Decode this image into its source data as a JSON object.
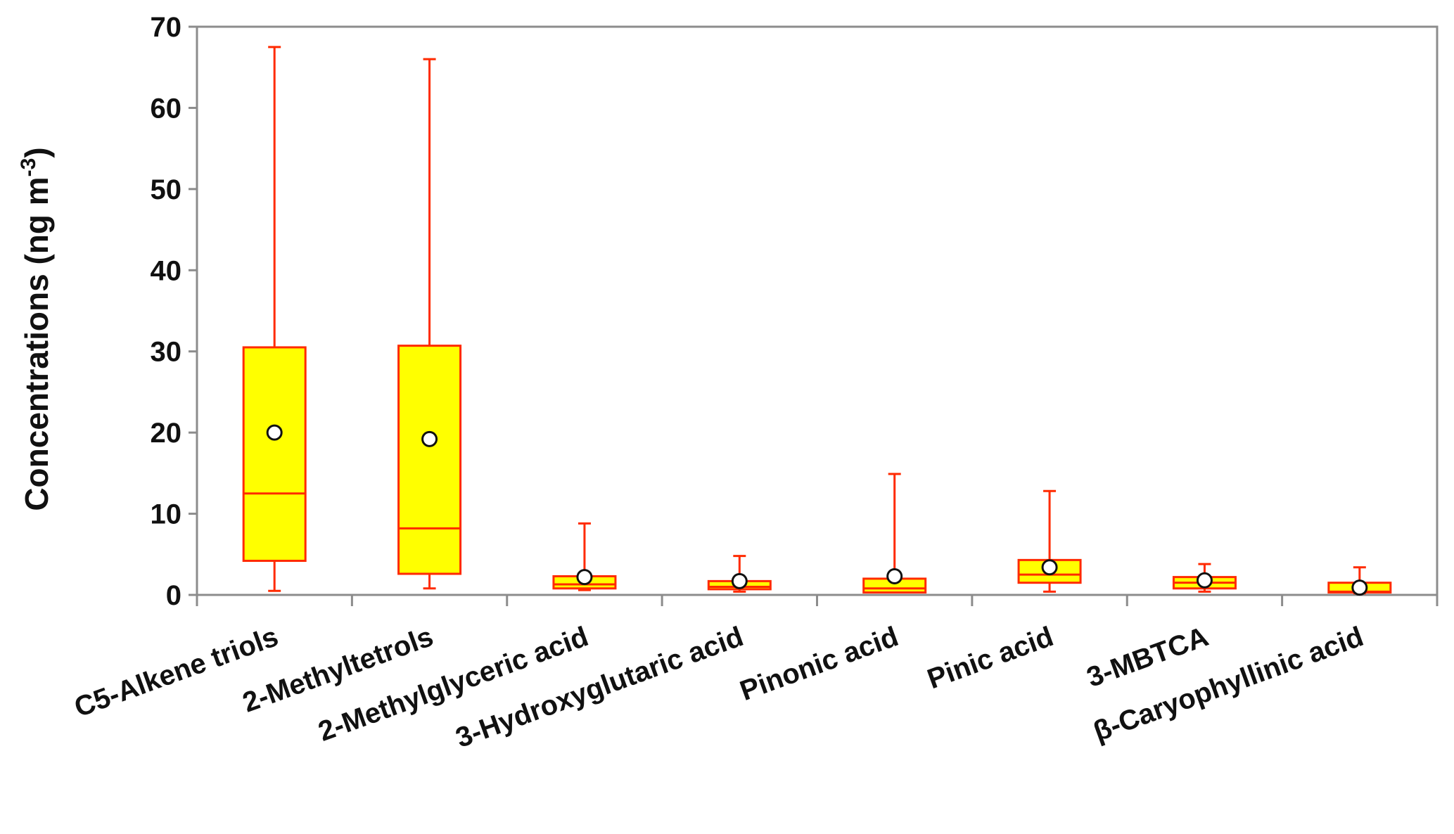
{
  "chart_data": {
    "type": "box",
    "ylabel": "Concentrations (ng m",
    "ylabel_sup": "-3",
    "ylabel_close": ")",
    "ylim": [
      0,
      70
    ],
    "yticks": [
      0,
      10,
      20,
      30,
      40,
      50,
      60,
      70
    ],
    "grid": false,
    "categories": [
      "C5-Alkene triols",
      "2-Methyltetrols",
      "2-Methylglyceric acid",
      "3-Hydroxyglutaric acid",
      "Pinonic acid",
      "Pinic acid",
      "3-MBTCA",
      "β-Caryophyllinic acid"
    ],
    "boxes": [
      {
        "min": 0.5,
        "q1": 4.2,
        "median": 12.5,
        "q3": 30.5,
        "max": 67.5,
        "mean": 20.0
      },
      {
        "min": 0.8,
        "q1": 2.6,
        "median": 8.2,
        "q3": 30.7,
        "max": 66.0,
        "mean": 19.2
      },
      {
        "min": 0.6,
        "q1": 0.8,
        "median": 1.3,
        "q3": 2.3,
        "max": 8.8,
        "mean": 2.2
      },
      {
        "min": 0.4,
        "q1": 0.7,
        "median": 1.0,
        "q3": 1.7,
        "max": 4.8,
        "mean": 1.7
      },
      {
        "min": 0.3,
        "q1": 0.3,
        "median": 0.8,
        "q3": 2.0,
        "max": 14.9,
        "mean": 2.3
      },
      {
        "min": 0.4,
        "q1": 1.5,
        "median": 2.5,
        "q3": 4.3,
        "max": 12.8,
        "mean": 3.4
      },
      {
        "min": 0.4,
        "q1": 0.8,
        "median": 1.5,
        "q3": 2.2,
        "max": 3.8,
        "mean": 1.8
      },
      {
        "min": 0.2,
        "q1": 0.3,
        "median": 0.4,
        "q3": 1.5,
        "max": 3.4,
        "mean": 0.9
      }
    ],
    "colors": {
      "box_fill": "#ffff00",
      "box_stroke": "#ff2a00",
      "whisker": "#ff2a00",
      "mean_fill": "#ffffff",
      "mean_stroke": "#111111",
      "axis": "#8c8c8c"
    }
  }
}
